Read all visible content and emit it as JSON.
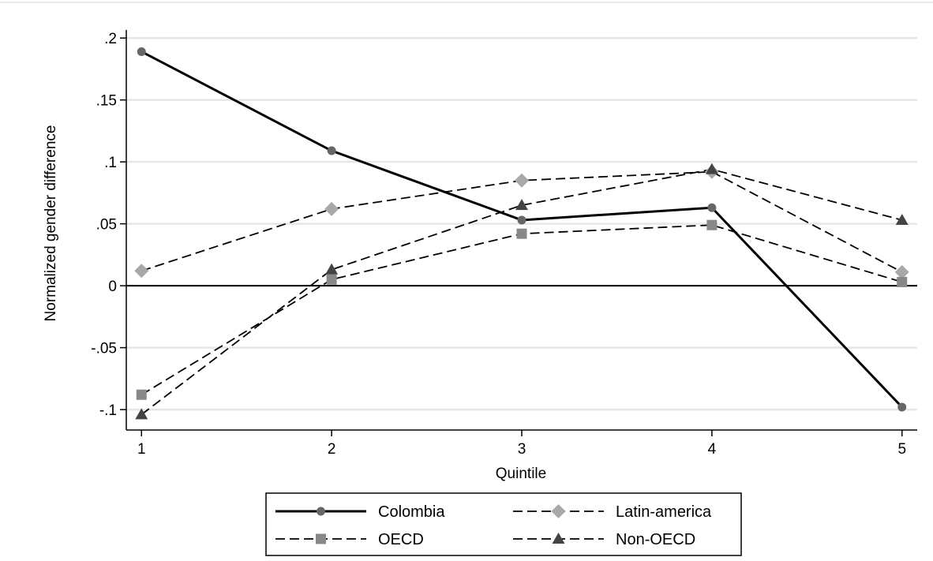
{
  "chart_data": {
    "type": "line",
    "xlabel": "Quintile",
    "ylabel": "Normalized gender difference",
    "x": [
      1,
      2,
      3,
      4,
      5
    ],
    "xlim": [
      0.92,
      5.08
    ],
    "ylim": [
      -0.1165,
      0.2065
    ],
    "x_ticks": [
      1,
      2,
      3,
      4,
      5
    ],
    "x_tick_labels": [
      "1",
      "2",
      "3",
      "4",
      "5"
    ],
    "y_ticks": [
      0.2,
      0.15,
      0.1,
      0.05,
      0,
      -0.05,
      -0.1
    ],
    "y_tick_labels": [
      ".2",
      ".15",
      ".1",
      ".05",
      "0",
      "-.05",
      "-.1"
    ],
    "grid": "horizontal",
    "reference_line": 0,
    "legend_position": "bottom",
    "series": [
      {
        "name": "Colombia",
        "values": [
          0.189,
          0.109,
          0.053,
          0.063,
          -0.098
        ],
        "color": "#000000",
        "marker": "circle",
        "marker_color": "#666666",
        "dash": "solid"
      },
      {
        "name": "Latin-america",
        "values": [
          0.012,
          0.062,
          0.085,
          0.092,
          0.011
        ],
        "color": "#000000",
        "marker": "diamond",
        "marker_color": "#a8a8a8",
        "dash": "dashed"
      },
      {
        "name": "OECD",
        "values": [
          -0.088,
          0.005,
          0.042,
          0.049,
          0.003
        ],
        "color": "#000000",
        "marker": "square",
        "marker_color": "#888888",
        "dash": "dashed"
      },
      {
        "name": "Non-OECD",
        "values": [
          -0.104,
          0.013,
          0.065,
          0.094,
          0.053
        ],
        "color": "#000000",
        "marker": "triangle",
        "marker_color": "#444444",
        "dash": "dashed"
      }
    ]
  }
}
